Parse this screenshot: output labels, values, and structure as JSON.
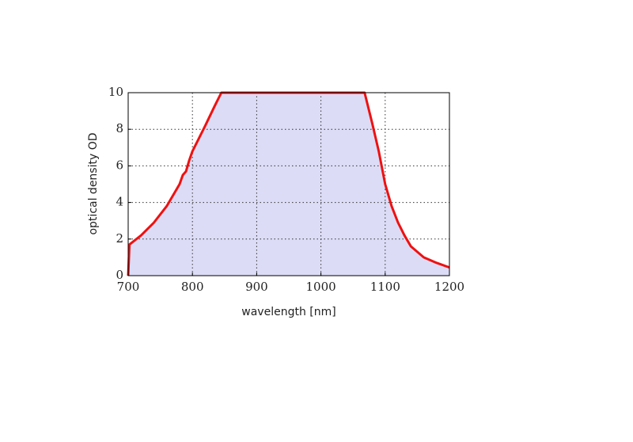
{
  "chart_data": {
    "type": "line",
    "x_label": "wavelength [nm]",
    "y_label": "optical density OD",
    "x": [
      700,
      702,
      720,
      740,
      760,
      780,
      785,
      790,
      795,
      800,
      820,
      835,
      845,
      900,
      1000,
      1068,
      1080,
      1090,
      1100,
      1110,
      1120,
      1130,
      1140,
      1160,
      1180,
      1200
    ],
    "series": [
      {
        "color": "#ee1111",
        "fill": "#dcdcf6",
        "values": [
          0,
          1.7,
          2.2,
          2.9,
          3.8,
          5.0,
          5.5,
          5.7,
          6.3,
          6.8,
          8.2,
          9.3,
          10,
          10,
          10,
          10,
          8.3,
          6.8,
          5.0,
          3.8,
          2.9,
          2.2,
          1.6,
          1.0,
          0.7,
          0.45
        ]
      }
    ],
    "xlim": [
      700,
      1200
    ],
    "xticks": [
      700,
      800,
      900,
      1000,
      1100,
      1200
    ],
    "ylim": [
      0,
      10
    ],
    "yticks": [
      0,
      2,
      4,
      6,
      8,
      10
    ],
    "grid": true
  }
}
